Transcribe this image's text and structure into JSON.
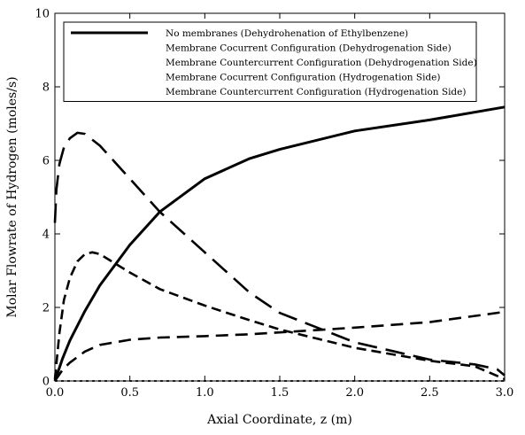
{
  "chart_data": {
    "type": "line",
    "xlabel": "Axial Coordinate, z (m)",
    "ylabel": "Molar Flowrate of Hydrogen (moles/s)",
    "xlim": [
      0,
      3.0
    ],
    "ylim": [
      0,
      10
    ],
    "xticks": [
      "0.0",
      "0.5",
      "1.0",
      "1.5",
      "2.0",
      "2.5",
      "3.0"
    ],
    "yticks": [
      "0",
      "2",
      "4",
      "6",
      "8",
      "10"
    ],
    "grid": false,
    "legend_position": "top",
    "series": [
      {
        "name": "No membranes (Dehydrohenation of Ethylbenzene)",
        "style": "solid-thick",
        "x": [
          0,
          0.05,
          0.1,
          0.2,
          0.3,
          0.5,
          0.7,
          1.0,
          1.3,
          1.5,
          2.0,
          2.5,
          3.0
        ],
        "y": [
          0,
          0.6,
          1.1,
          1.9,
          2.6,
          3.7,
          4.6,
          5.5,
          6.05,
          6.3,
          6.8,
          7.1,
          7.45
        ]
      },
      {
        "name": "Membrane Cocurrent Configuration (Dehydrogenation Side)",
        "style": "long-dash",
        "x": [
          0,
          0.01,
          0.03,
          0.06,
          0.1,
          0.15,
          0.2,
          0.3,
          0.5,
          0.7,
          1.0,
          1.3,
          1.5,
          2.0,
          2.5,
          2.8,
          2.95,
          3.0
        ],
        "y": [
          4.3,
          5.2,
          5.9,
          6.35,
          6.6,
          6.75,
          6.72,
          6.4,
          5.5,
          4.6,
          3.5,
          2.4,
          1.85,
          1.05,
          0.58,
          0.45,
          0.32,
          0.15
        ]
      },
      {
        "name": "Membrane Countercurrent Configuration (Dehydrogenation Side)",
        "style": "short-dash",
        "x": [
          0,
          0.03,
          0.06,
          0.1,
          0.15,
          0.2,
          0.25,
          0.3,
          0.4,
          0.5,
          0.7,
          1.0,
          1.3,
          1.5,
          2.0,
          2.5,
          2.8,
          3.0
        ],
        "y": [
          0.05,
          1.3,
          2.2,
          2.8,
          3.25,
          3.45,
          3.5,
          3.45,
          3.2,
          2.95,
          2.5,
          2.05,
          1.65,
          1.4,
          0.9,
          0.55,
          0.4,
          0.05
        ]
      },
      {
        "name": "Membrane Cocurrent Configuration (Hydrogenation Side)",
        "style": "medium-dash",
        "x": [
          0,
          0.05,
          0.1,
          0.2,
          0.3,
          0.5,
          0.7,
          1.0,
          1.3,
          1.5,
          2.0,
          2.5,
          3.0
        ],
        "y": [
          0,
          0.3,
          0.5,
          0.8,
          0.98,
          1.12,
          1.18,
          1.22,
          1.27,
          1.32,
          1.45,
          1.6,
          1.88
        ]
      },
      {
        "name": "Membrane Countercurrent Configuration (Hydrogenation Side)",
        "style": "dotted",
        "x": [
          0,
          3.0
        ],
        "y": [
          0,
          0
        ]
      }
    ]
  }
}
